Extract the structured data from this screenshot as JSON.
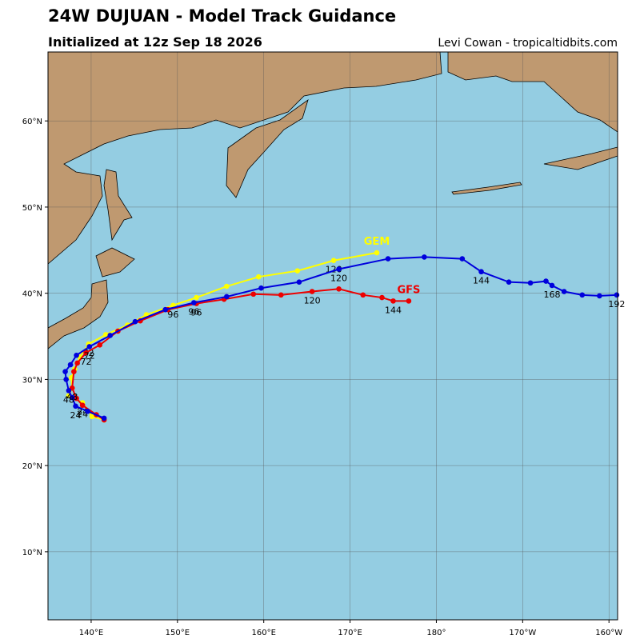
{
  "header": {
    "title": "24W DUJUAN - Model Track Guidance",
    "subtitle": "Initialized at 12z Sep 18 2026",
    "credit": "Levi Cowan - tropicaltidbits.com"
  },
  "map": {
    "lon_range": [
      135,
      201
    ],
    "lat_range": [
      2.1,
      68
    ],
    "ocean_color": "#94cde2",
    "land_color": "#bf9970",
    "grid": true,
    "lon_ticks": [
      {
        "value": 140,
        "label": "140°E"
      },
      {
        "value": 150,
        "label": "150°E"
      },
      {
        "value": 160,
        "label": "160°E"
      },
      {
        "value": 170,
        "label": "170°E"
      },
      {
        "value": 180,
        "label": "180°"
      },
      {
        "value": 190,
        "label": "170°W"
      },
      {
        "value": 200,
        "label": "160°W"
      }
    ],
    "lat_ticks": [
      {
        "value": 10,
        "label": "10°N"
      },
      {
        "value": 20,
        "label": "20°N"
      },
      {
        "value": 30,
        "label": "30°N"
      },
      {
        "value": 40,
        "label": "40°N"
      },
      {
        "value": 50,
        "label": "50°N"
      },
      {
        "value": 60,
        "label": "60°N"
      }
    ]
  },
  "tracks": [
    {
      "name": "GEM",
      "color": "#ffff00",
      "lon": [
        141.5,
        140.1,
        139.0,
        137.4,
        137.8,
        137.7,
        138.1,
        138.7,
        139.7,
        141.7,
        144.2,
        146.4,
        149.5,
        152.2,
        155.7,
        159.4,
        163.9,
        168.1,
        173.1
      ],
      "lat": [
        25.3,
        25.7,
        27.3,
        28.1,
        29.0,
        30.2,
        31.2,
        32.6,
        34.1,
        35.2,
        36.3,
        37.5,
        38.6,
        39.5,
        40.8,
        41.9,
        42.6,
        43.8,
        44.7
      ],
      "labels": [
        null,
        null,
        "24",
        null,
        "48",
        null,
        null,
        null,
        "72",
        null,
        null,
        null,
        "96",
        null,
        null,
        null,
        null,
        "120",
        null
      ]
    },
    {
      "name": "GFS",
      "color": "#ee0000",
      "lon": [
        141.5,
        140.6,
        139.0,
        138.3,
        137.8,
        138.0,
        138.4,
        139.4,
        141.0,
        143.1,
        145.7,
        148.9,
        152.2,
        155.4,
        158.8,
        162.0,
        165.6,
        168.7,
        171.5,
        173.7,
        175.0,
        176.8
      ],
      "lat": [
        25.3,
        25.9,
        27.0,
        27.8,
        29.0,
        30.9,
        31.9,
        33.1,
        34.0,
        35.6,
        36.8,
        38.1,
        38.8,
        39.3,
        39.9,
        39.8,
        40.2,
        40.5,
        39.8,
        39.5,
        39.1,
        39.1
      ],
      "labels": [
        null,
        null,
        "24",
        null,
        "48",
        null,
        null,
        "72",
        null,
        null,
        null,
        null,
        "96",
        null,
        null,
        null,
        "120",
        null,
        null,
        null,
        "144",
        null
      ]
    },
    {
      "color": "#0000dd",
      "lon": [
        141.5,
        139.6,
        138.2,
        137.8,
        137.4,
        137.1,
        137.0,
        137.6,
        138.3,
        139.8,
        142.2,
        145.1,
        148.6,
        151.9,
        155.7,
        159.7,
        164.1,
        168.7,
        174.4,
        178.6,
        183.0,
        185.2,
        188.4,
        190.9,
        192.7,
        193.4,
        194.8,
        196.9,
        198.9,
        200.9
      ],
      "lat": [
        25.5,
        26.3,
        26.9,
        27.9,
        28.7,
        30.0,
        30.9,
        31.7,
        32.8,
        33.8,
        35.1,
        36.7,
        38.1,
        38.9,
        39.6,
        40.6,
        41.3,
        42.8,
        44.0,
        44.2,
        44.0,
        42.5,
        41.3,
        41.2,
        41.4,
        40.9,
        40.2,
        39.8,
        39.7,
        39.8
      ],
      "labels": [
        null,
        null,
        "24",
        null,
        "48",
        null,
        null,
        null,
        null,
        "72",
        null,
        null,
        null,
        "96",
        null,
        null,
        null,
        "120",
        null,
        null,
        null,
        "144",
        null,
        null,
        null,
        "168",
        null,
        null,
        null,
        "192"
      ]
    }
  ]
}
